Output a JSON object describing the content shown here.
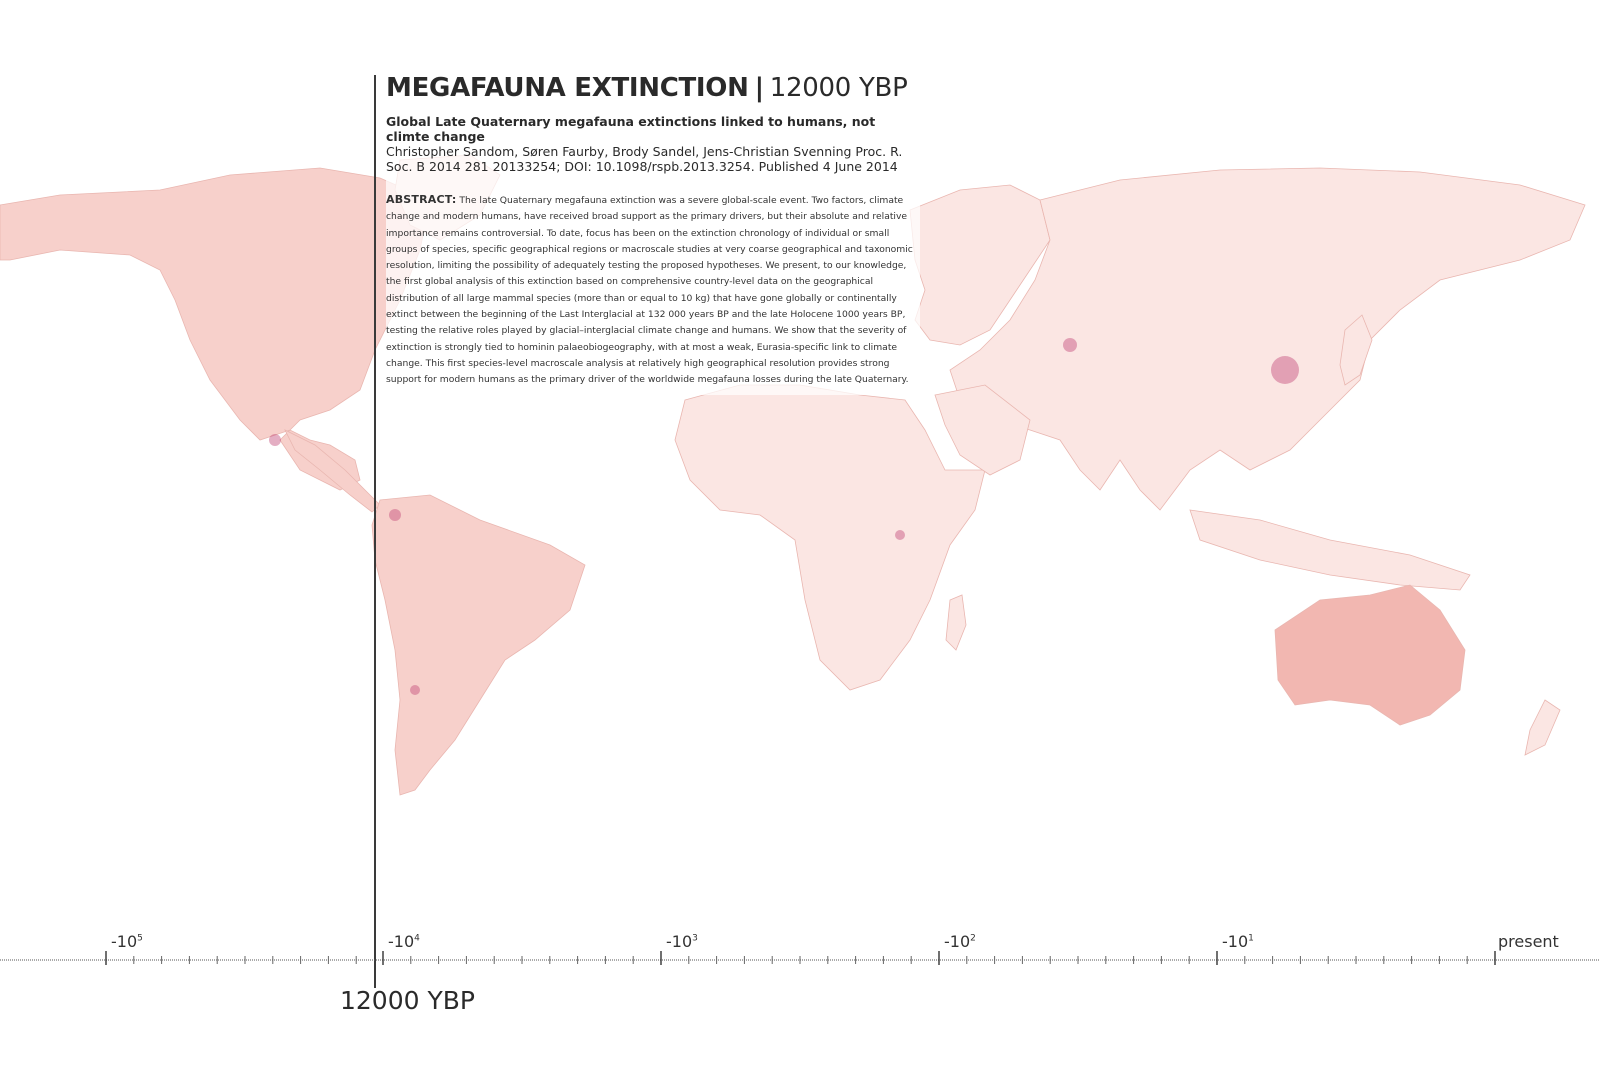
{
  "title": {
    "main": "MEGAFAUNA EXTINCTION",
    "separator": "|",
    "year": "12000 YBP"
  },
  "paper": {
    "title": "Global Late Quaternary megafauna extinctions linked to humans, not climte change",
    "citation": "Christopher Sandom, Søren Faurby, Brody Sandel, Jens-Christian Svenning Proc. R. Soc. B 2014 281 20133254; DOI: 10.1098/rspb.2013.3254. Published 4 June 2014"
  },
  "abstract": {
    "label": "ABSTRACT:",
    "text": "The late Quaternary megafauna extinction was a severe global-scale event. Two factors, climate change and modern humans, have received broad support as the primary drivers, but their absolute and relative importance remains controversial. To date, focus has been on the extinction chronology of individual or small groups of species, specific geographical regions or macroscale studies at very coarse geographical and taxonomic resolution, limiting the possibility of adequately testing the proposed hypotheses. We present, to our knowledge, the first global analysis of this extinction based on comprehensive country-level data on the geographical distribution of all large mammal species (more than or equal to 10 kg) that have gone globally or continentally extinct between the beginning of the Last Interglacial at 132 000 years BP and the late Holocene 1000 years BP, testing the relative roles played by glacial–interglacial climate change and humans. We show that the severity of extinction is strongly tied to hominin palaeobiogeography, with at most a weak, Eurasia-specific link to climate change. This first species-level macroscale analysis at relatively high geographical resolution provides strong support for modern humans as the primary driver of the worldwide megafauna losses during the late Quaternary."
  },
  "timeline": {
    "ticks": [
      {
        "base": "-10",
        "exp": "5"
      },
      {
        "base": "-10",
        "exp": "4"
      },
      {
        "base": "-10",
        "exp": "3"
      },
      {
        "base": "-10",
        "exp": "2"
      },
      {
        "base": "-10",
        "exp": "1"
      },
      {
        "base": "present",
        "exp": ""
      }
    ],
    "current_label": "12000 YBP"
  },
  "colors": {
    "land": "#f7d0cb",
    "hotspot": "#c44b7a",
    "line": "#3a3a3a"
  }
}
